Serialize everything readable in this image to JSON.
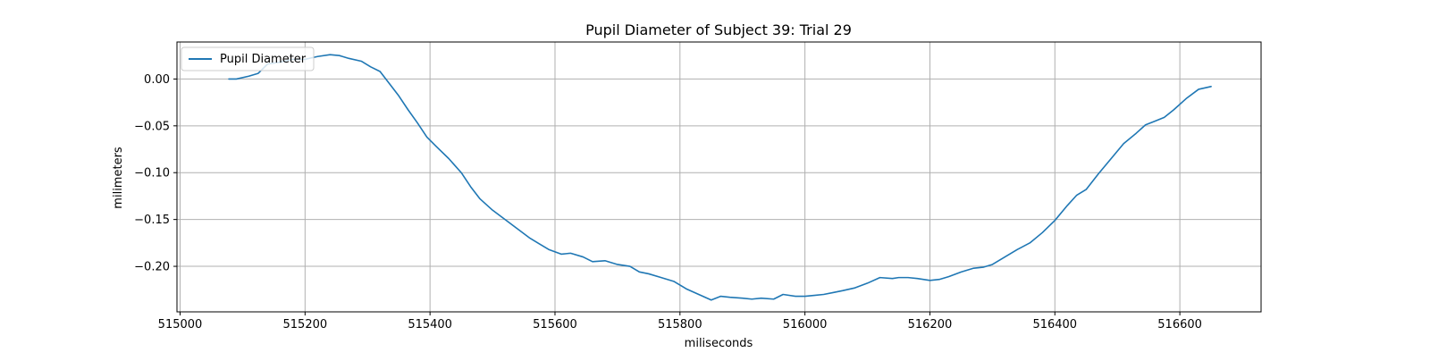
{
  "chart_data": {
    "type": "line",
    "title": "Pupil Diameter of Subject 39: Trial 29",
    "xlabel": "miliseconds",
    "ylabel": "milimeters",
    "xlim": [
      514995,
      516730
    ],
    "ylim": [
      -0.2486,
      0.0395
    ],
    "xticks": [
      515000,
      515200,
      515400,
      515600,
      515800,
      516000,
      516200,
      516400,
      516600
    ],
    "yticks": [
      0.0,
      -0.05,
      -0.1,
      -0.15,
      -0.2
    ],
    "xtick_labels": [
      "515000",
      "515200",
      "515400",
      "515600",
      "515800",
      "516000",
      "516200",
      "516400",
      "516600"
    ],
    "ytick_labels": [
      "0.00",
      "−0.05",
      "−0.10",
      "−0.15",
      "−0.20"
    ],
    "grid": true,
    "legend_position": "top-left",
    "series": [
      {
        "name": "Pupil Diameter",
        "color": "#1f77b4",
        "x": [
          515078,
          515090,
          515110,
          515125,
          515140,
          515160,
          515180,
          515200,
          515220,
          515240,
          515255,
          515270,
          515290,
          515305,
          515320,
          515335,
          515350,
          515365,
          515380,
          515395,
          515410,
          515430,
          515450,
          515465,
          515480,
          515500,
          515520,
          515540,
          515560,
          515575,
          515590,
          515610,
          515625,
          515645,
          515660,
          515680,
          515700,
          515720,
          515735,
          515750,
          515770,
          515790,
          515810,
          515830,
          515850,
          515865,
          515880,
          515900,
          515915,
          515930,
          515950,
          515965,
          515985,
          516000,
          516015,
          516030,
          516045,
          516060,
          516080,
          516100,
          516120,
          516140,
          516150,
          516165,
          516180,
          516200,
          516215,
          516230,
          516250,
          516270,
          516285,
          516300,
          516320,
          516340,
          516360,
          516380,
          516400,
          516420,
          516435,
          516450,
          516470,
          516490,
          516510,
          516530,
          516545,
          516560,
          516575,
          516590,
          516610,
          516630,
          516650
        ],
        "values": [
          0.0,
          0.0,
          0.003,
          0.006,
          0.016,
          0.018,
          0.021,
          0.021,
          0.024,
          0.026,
          0.025,
          0.022,
          0.019,
          0.013,
          0.008,
          -0.005,
          -0.018,
          -0.033,
          -0.047,
          -0.062,
          -0.072,
          -0.085,
          -0.1,
          -0.115,
          -0.128,
          -0.14,
          -0.15,
          -0.16,
          -0.17,
          -0.176,
          -0.182,
          -0.187,
          -0.186,
          -0.19,
          -0.195,
          -0.194,
          -0.198,
          -0.2,
          -0.206,
          -0.208,
          -0.212,
          -0.216,
          -0.224,
          -0.23,
          -0.236,
          -0.232,
          -0.233,
          -0.234,
          -0.235,
          -0.234,
          -0.235,
          -0.23,
          -0.232,
          -0.232,
          -0.231,
          -0.23,
          -0.228,
          -0.226,
          -0.223,
          -0.218,
          -0.212,
          -0.213,
          -0.212,
          -0.212,
          -0.213,
          -0.215,
          -0.214,
          -0.211,
          -0.206,
          -0.202,
          -0.201,
          -0.198,
          -0.19,
          -0.182,
          -0.175,
          -0.164,
          -0.151,
          -0.135,
          -0.124,
          -0.118,
          -0.101,
          -0.085,
          -0.069,
          -0.058,
          -0.049,
          -0.045,
          -0.041,
          -0.033,
          -0.021,
          -0.011,
          -0.008
        ]
      }
    ]
  }
}
